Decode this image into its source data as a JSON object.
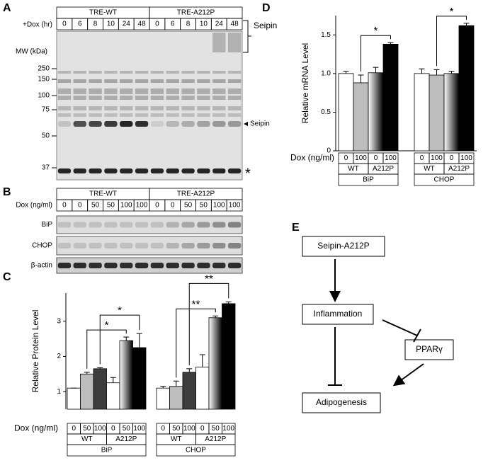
{
  "panel_labels": [
    "A",
    "B",
    "C",
    "D",
    "E"
  ],
  "panel_a": {
    "groups": [
      "TRE-WT",
      "TRE-A212P"
    ],
    "row_label": "+Dox (hr)",
    "lanes": [
      "0",
      "6",
      "8",
      "10",
      "24",
      "48",
      "0",
      "6",
      "8",
      "10",
      "24",
      "48"
    ],
    "mw_label": "MW (kDa)",
    "mw_markers": [
      "250",
      "150",
      "100",
      "75",
      "50",
      "37"
    ],
    "seipin_bracket": "Seipin",
    "seipin_arrow": "Seipin",
    "nonspecific": "*"
  },
  "panel_b": {
    "groups": [
      "TRE-WT",
      "TRE-A212P"
    ],
    "row_label": "Dox (ng/ml)",
    "lanes": [
      "0",
      "0",
      "50",
      "50",
      "100",
      "100",
      "0",
      "0",
      "50",
      "50",
      "100",
      "100"
    ],
    "rows": [
      "BiP",
      "CHOP",
      "β-actin"
    ]
  },
  "chart_data": [
    {
      "type": "bar",
      "y_label": "Relative Protein Level",
      "x_row_label": "Dox (ng/ml)",
      "ylim": [
        0.5,
        3.8
      ],
      "yticks": [
        1,
        2,
        3
      ],
      "categories": [
        "0",
        "50",
        "100",
        "0",
        "50",
        "100",
        "0",
        "50",
        "100",
        "0",
        "50",
        "100"
      ],
      "subgroups": [
        "WT",
        "A212P",
        "WT",
        "A212P"
      ],
      "groups": [
        "BiP",
        "CHOP"
      ],
      "values": [
        1.1,
        1.5,
        1.65,
        1.25,
        2.45,
        2.25,
        1.1,
        1.15,
        1.55,
        1.7,
        3.1,
        3.5
      ],
      "errors": [
        0,
        0.05,
        0.03,
        0.15,
        0.1,
        0.4,
        0.05,
        0.15,
        0.1,
        0.35,
        0.05,
        0.05
      ],
      "colors": [
        "#ffffff",
        "#bdbdbd",
        "#3c3c3c",
        "#ffffff",
        "gradient",
        "#000000",
        "#ffffff",
        "#bdbdbd",
        "#3c3c3c",
        "#ffffff",
        "gradient",
        "#000000"
      ],
      "annotations": [
        {
          "text": "*",
          "from": 1,
          "to": 4
        },
        {
          "text": "*",
          "from": 2,
          "to": 5
        },
        {
          "text": "**",
          "from": 7,
          "to": 10
        },
        {
          "text": "**",
          "from": 8,
          "to": 11
        }
      ]
    },
    {
      "type": "bar",
      "y_label": "Relative mRNA Level",
      "x_row_label": "Dox (ng/ml)",
      "ylim": [
        0,
        1.75
      ],
      "yticks": [
        0,
        0.5,
        {
          "value": 1,
          "label": "1.0"
        },
        1.5
      ],
      "categories": [
        "0",
        "100",
        "0",
        "100",
        "0",
        "100",
        "0",
        "100"
      ],
      "subgroups": [
        "WT",
        "A212P",
        "WT",
        "A212P"
      ],
      "groups": [
        "BiP",
        "CHOP"
      ],
      "values": [
        1.0,
        0.88,
        1.01,
        1.38,
        1.0,
        0.98,
        1.0,
        1.62
      ],
      "errors": [
        0.03,
        0.1,
        0.07,
        0.02,
        0.06,
        0.07,
        0.03,
        0.03
      ],
      "colors": [
        "#ffffff",
        "#bdbdbd",
        "gradient",
        "#000000",
        "#ffffff",
        "#bdbdbd",
        "gradient",
        "#000000"
      ],
      "annotations": [
        {
          "text": "*",
          "from": 1,
          "to": 3
        },
        {
          "text": "*",
          "from": 5,
          "to": 7
        }
      ]
    }
  ],
  "diagram": {
    "nodes": [
      {
        "label": "Seipin-A212P"
      },
      {
        "label": "Inflammation"
      },
      {
        "label": "PPARγ"
      },
      {
        "label": "Adipogenesis"
      }
    ]
  }
}
